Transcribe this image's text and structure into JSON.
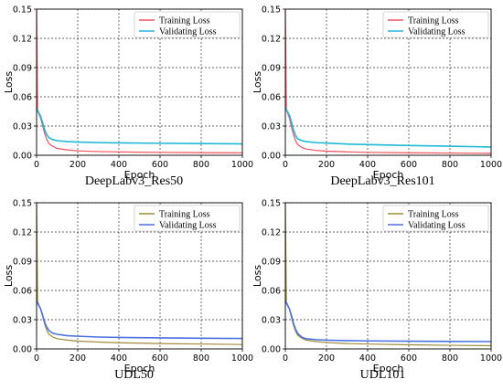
{
  "chart_data": [
    {
      "type": "line",
      "caption": "DeepLabv3_Res50",
      "xlabel": "Epoch",
      "ylabel": "Loss",
      "xlim": [
        0,
        1000
      ],
      "ylim": [
        0,
        0.15
      ],
      "xticks": [
        "0",
        "200",
        "400",
        "600",
        "800",
        "1000"
      ],
      "yticks": [
        "0.00",
        "0.03",
        "0.06",
        "0.09",
        "0.12",
        "0.15"
      ],
      "grid": true,
      "legend_position": "top-right",
      "series": [
        {
          "name": "Training Loss",
          "color": "#f0505a",
          "x": [
            0,
            5,
            10,
            20,
            30,
            40,
            50,
            60,
            80,
            100,
            150,
            200,
            300,
            400,
            600,
            800,
            1000
          ],
          "y": [
            0.15,
            0.045,
            0.043,
            0.038,
            0.03,
            0.022,
            0.016,
            0.012,
            0.009,
            0.007,
            0.0055,
            0.0045,
            0.0038,
            0.0034,
            0.003,
            0.0027,
            0.0025
          ]
        },
        {
          "name": "Validating Loss",
          "color": "#1fb8d6",
          "x": [
            0,
            5,
            10,
            20,
            30,
            40,
            50,
            60,
            80,
            100,
            150,
            200,
            300,
            400,
            600,
            800,
            1000
          ],
          "y": [
            0.048,
            0.046,
            0.044,
            0.04,
            0.033,
            0.026,
            0.021,
            0.018,
            0.016,
            0.015,
            0.014,
            0.0135,
            0.013,
            0.0127,
            0.0123,
            0.012,
            0.0117
          ]
        }
      ]
    },
    {
      "type": "line",
      "caption": "DeepLabv3_Res101",
      "xlabel": "Epoch",
      "ylabel": "Loss",
      "xlim": [
        0,
        1000
      ],
      "ylim": [
        0,
        0.15
      ],
      "xticks": [
        "0",
        "200",
        "400",
        "600",
        "800",
        "1000"
      ],
      "yticks": [
        "0.00",
        "0.03",
        "0.06",
        "0.09",
        "0.12",
        "0.15"
      ],
      "grid": true,
      "legend_position": "top-right",
      "series": [
        {
          "name": "Training Loss",
          "color": "#f0505a",
          "x": [
            0,
            5,
            10,
            20,
            30,
            40,
            50,
            60,
            80,
            100,
            150,
            200,
            300,
            400,
            600,
            800,
            1000
          ],
          "y": [
            0.15,
            0.046,
            0.044,
            0.038,
            0.029,
            0.021,
            0.015,
            0.011,
            0.008,
            0.0065,
            0.005,
            0.0042,
            0.0035,
            0.003,
            0.0026,
            0.0023,
            0.002
          ]
        },
        {
          "name": "Validating Loss",
          "color": "#1fb8d6",
          "x": [
            0,
            5,
            10,
            20,
            30,
            40,
            50,
            60,
            80,
            100,
            150,
            200,
            300,
            400,
            600,
            800,
            1000
          ],
          "y": [
            0.049,
            0.047,
            0.045,
            0.041,
            0.034,
            0.026,
            0.02,
            0.017,
            0.015,
            0.014,
            0.013,
            0.0125,
            0.0115,
            0.011,
            0.01,
            0.0093,
            0.0085
          ]
        }
      ]
    },
    {
      "type": "line",
      "caption": "UDL50",
      "xlabel": "Epoch",
      "ylabel": "Loss",
      "xlim": [
        0,
        1000
      ],
      "ylim": [
        0,
        0.15
      ],
      "xticks": [
        "0",
        "200",
        "400",
        "600",
        "800",
        "1000"
      ],
      "yticks": [
        "0.00",
        "0.03",
        "0.06",
        "0.09",
        "0.12",
        "0.15"
      ],
      "grid": true,
      "legend_position": "top-right",
      "series": [
        {
          "name": "Training Loss",
          "color": "#a08a3c",
          "x": [
            0,
            5,
            10,
            20,
            30,
            40,
            50,
            60,
            80,
            100,
            150,
            200,
            300,
            400,
            600,
            800,
            1000
          ],
          "y": [
            0.15,
            0.048,
            0.046,
            0.041,
            0.033,
            0.025,
            0.019,
            0.015,
            0.012,
            0.0105,
            0.009,
            0.008,
            0.007,
            0.0063,
            0.0055,
            0.005,
            0.0045
          ]
        },
        {
          "name": "Validating Loss",
          "color": "#4a72e0",
          "x": [
            0,
            5,
            10,
            20,
            30,
            40,
            50,
            60,
            80,
            100,
            150,
            200,
            300,
            400,
            600,
            800,
            1000
          ],
          "y": [
            0.049,
            0.047,
            0.045,
            0.041,
            0.034,
            0.027,
            0.022,
            0.019,
            0.016,
            0.015,
            0.0135,
            0.013,
            0.0122,
            0.0118,
            0.0113,
            0.011,
            0.0107
          ]
        }
      ]
    },
    {
      "type": "line",
      "caption": "UDL101",
      "xlabel": "Epoch",
      "ylabel": "Loss",
      "xlim": [
        0,
        1000
      ],
      "ylim": [
        0,
        0.15
      ],
      "xticks": [
        "0",
        "200",
        "400",
        "600",
        "800",
        "1000"
      ],
      "yticks": [
        "0.00",
        "0.03",
        "0.06",
        "0.09",
        "0.12",
        "0.15"
      ],
      "grid": true,
      "legend_position": "top-right",
      "series": [
        {
          "name": "Training Loss",
          "color": "#a08a3c",
          "x": [
            0,
            5,
            10,
            20,
            30,
            40,
            50,
            60,
            80,
            100,
            150,
            200,
            300,
            400,
            600,
            800,
            1000
          ],
          "y": [
            0.15,
            0.048,
            0.046,
            0.041,
            0.032,
            0.024,
            0.018,
            0.014,
            0.011,
            0.009,
            0.0075,
            0.0065,
            0.0055,
            0.005,
            0.0042,
            0.0037,
            0.0033
          ]
        },
        {
          "name": "Validating Loss",
          "color": "#4a72e0",
          "x": [
            0,
            5,
            10,
            20,
            30,
            40,
            50,
            60,
            80,
            100,
            150,
            200,
            300,
            400,
            600,
            800,
            1000
          ],
          "y": [
            0.049,
            0.047,
            0.045,
            0.041,
            0.034,
            0.026,
            0.02,
            0.016,
            0.012,
            0.0105,
            0.0095,
            0.009,
            0.0085,
            0.0082,
            0.0079,
            0.0077,
            0.0075
          ]
        }
      ]
    }
  ]
}
